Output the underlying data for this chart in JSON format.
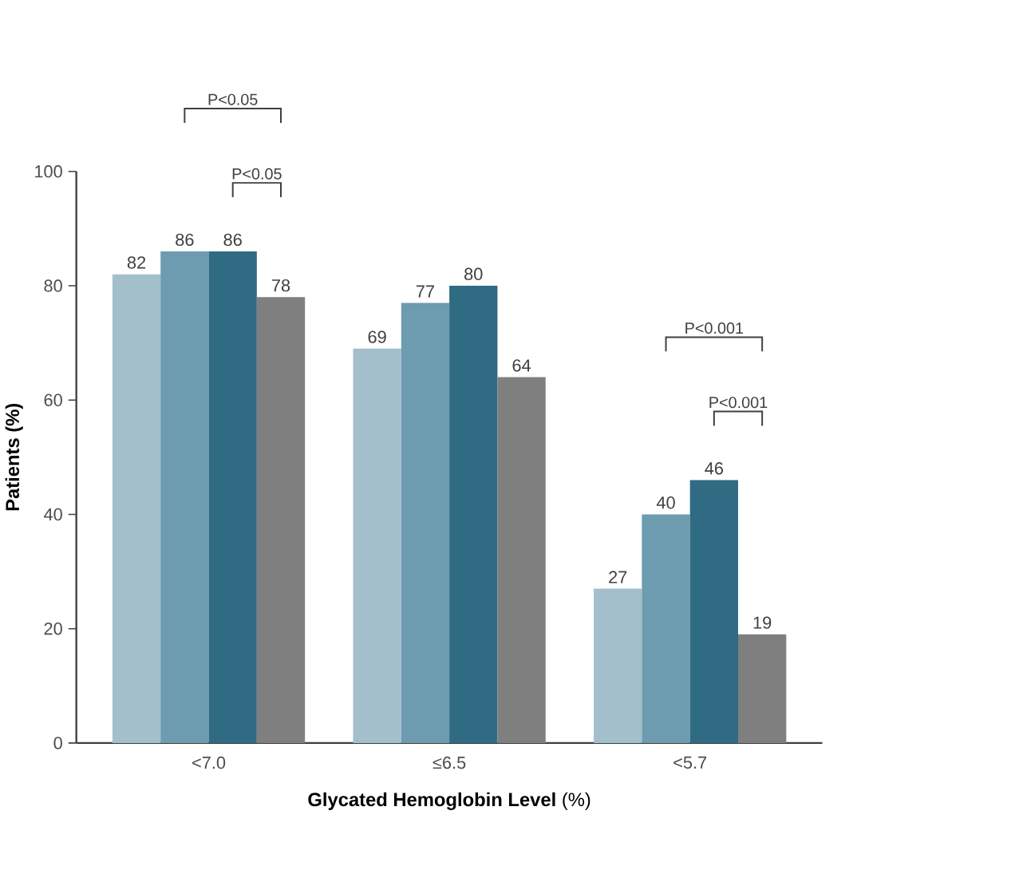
{
  "chart_data": {
    "type": "bar",
    "xlabel": "**Glycated Hemoglobin Level** (%)",
    "ylabel": "Patients (%)",
    "categories": [
      "<7.0",
      "≤6.5",
      "<5.7"
    ],
    "series": [
      {
        "color": "#a3bfcc",
        "values": [
          82,
          69,
          27
        ]
      },
      {
        "color": "#6d9bb0",
        "values": [
          86,
          77,
          40
        ]
      },
      {
        "color": "#2f6b82",
        "values": [
          86,
          80,
          46
        ]
      },
      {
        "color": "#7f7f7f",
        "values": [
          78,
          64,
          19
        ]
      }
    ],
    "ylim": [
      0,
      100
    ],
    "yticks": [
      0,
      20,
      40,
      60,
      80,
      100
    ],
    "data_labels": true,
    "grid": false,
    "annotations": [
      "P<0.05",
      "P<0.05",
      "P<0.001",
      "P<0.001"
    ]
  }
}
